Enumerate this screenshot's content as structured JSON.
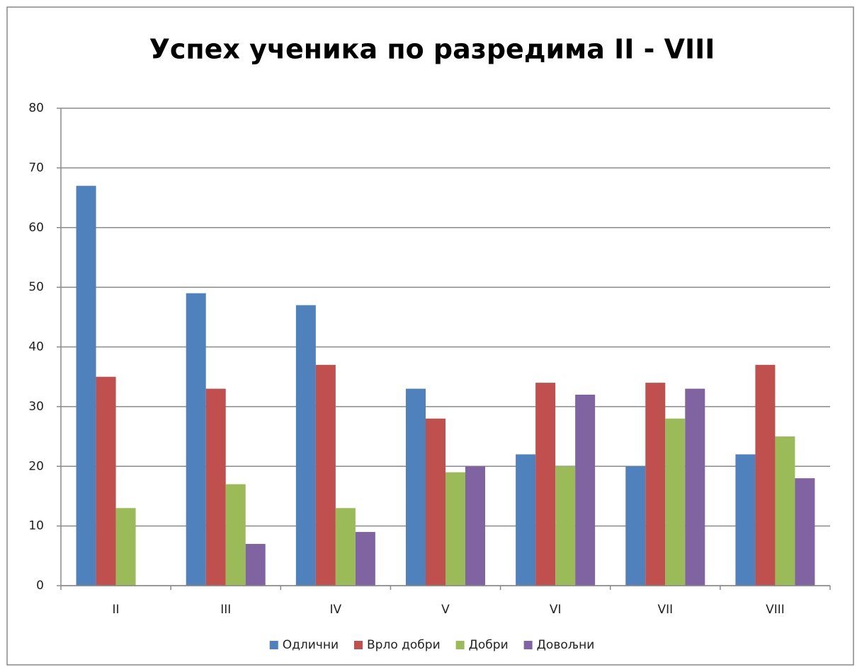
{
  "chart_data": {
    "type": "bar",
    "title": "Успех ученика по разредима II - VIII",
    "categories": [
      "II",
      "III",
      "IV",
      "V",
      "VI",
      "VII",
      "VIII"
    ],
    "series": [
      {
        "name": "Одлични",
        "color": "#4f81bd",
        "values": [
          67,
          49,
          47,
          33,
          22,
          20,
          22
        ]
      },
      {
        "name": "Врло добри",
        "color": "#c0504d",
        "values": [
          35,
          33,
          37,
          28,
          34,
          34,
          37
        ]
      },
      {
        "name": "Добри",
        "color": "#9bbb59",
        "values": [
          13,
          17,
          13,
          19,
          20,
          28,
          25
        ]
      },
      {
        "name": "Довољни",
        "color": "#8064a2",
        "values": [
          0,
          7,
          9,
          20,
          32,
          33,
          18
        ]
      }
    ],
    "ylim": [
      0,
      80
    ],
    "yticks": [
      0,
      10,
      20,
      30,
      40,
      50,
      60,
      70,
      80
    ],
    "grid": true,
    "legend": "bottom"
  }
}
